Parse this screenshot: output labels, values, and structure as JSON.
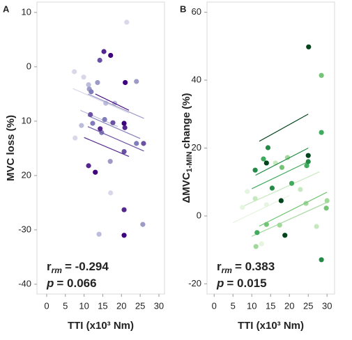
{
  "chart_data": [
    {
      "type": "scatter",
      "panel_label": "A",
      "ylabel": "MVC loss (%)",
      "xlabel": "TTI (x10³ Nm)",
      "r_label": "r",
      "r_sub": "rm",
      "r_text": "= -0.294",
      "p_label": "p",
      "p_text": "= 0.066",
      "xlim": [
        -2.6,
        31.5
      ],
      "ylim": [
        -41.8,
        11.9
      ],
      "xticks": [
        0,
        5,
        10,
        15,
        20,
        25,
        30
      ],
      "yticks": [
        10,
        0,
        {
          "value": -10,
          "label": "10"
        },
        {
          "value": -20,
          "label": "20"
        },
        -30,
        -40
      ],
      "series": [
        {
          "color": "#d9d8ea",
          "x": [
            7.4,
            9.9,
            7.6,
            17.1,
            21.4
          ],
          "values": [
            -0.9,
            -1.9,
            -13.1,
            -23.2,
            8.2
          ],
          "fit_x": [
            7,
            22
          ],
          "fit_y": [
            -4,
            -8.5
          ]
        },
        {
          "color": "#bcbddc",
          "x": [
            11.2,
            15.8,
            14,
            18.2,
            9.3
          ],
          "values": [
            -3.3,
            -6.7,
            -30.8,
            -6.7,
            -10.8
          ],
          "fit_x": [
            9,
            19
          ],
          "fit_y": [
            -8,
            -11
          ]
        },
        {
          "color": "#9e9ac8",
          "x": [
            11.4,
            13.6,
            17,
            25.7,
            24
          ],
          "values": [
            -4.1,
            -2.9,
            -17.4,
            -29,
            -2.7
          ],
          "fit_x": [
            11,
            26
          ],
          "fit_y": [
            -5,
            -9.5
          ]
        },
        {
          "color": "#807dba",
          "x": [
            11.9,
            12.3,
            14.7,
            24,
            15.5
          ],
          "values": [
            -4.6,
            -10.4,
            -12.1,
            -14.1,
            -9.7
          ],
          "fit_x": [
            11,
            25
          ],
          "fit_y": [
            -9,
            -13.2
          ]
        },
        {
          "color": "#6a51a3",
          "x": [
            14.2,
            17.7,
            11.7,
            25.9,
            20.7
          ],
          "values": [
            1.2,
            -10.3,
            -8.8,
            -14.1,
            -15.6
          ],
          "fit_x": [
            11,
            26
          ],
          "fit_y": [
            -11,
            -15.5
          ]
        },
        {
          "color": "#54278f",
          "x": [
            15.3,
            11.2,
            14.3,
            20.9,
            20.7
          ],
          "values": [
            2.8,
            -18.2,
            -11.4,
            -11.2,
            -26.3
          ],
          "fit_x": [
            10,
            22
          ],
          "fit_y": [
            -13,
            -16.5
          ]
        },
        {
          "color": "#3f007d",
          "x": [
            17.1,
            21,
            20.7,
            20.7,
            13
          ],
          "values": [
            2.1,
            -2.9,
            -10.4,
            -31,
            -19.4
          ],
          "fit_x": [
            13,
            22
          ],
          "fit_y": [
            -5,
            -8
          ]
        }
      ]
    },
    {
      "type": "scatter",
      "panel_label": "B",
      "ylabel": "ΔMVC",
      "ylabel_sub": "1-MIN",
      "ylabel_rest": "change (%)",
      "xlabel": "TTI (x10³ Nm)",
      "r_label": "r",
      "r_sub": "rm",
      "r_text": "= 0.383",
      "p_label": "p",
      "p_text": "= 0.015",
      "xlim": [
        -1.9,
        32
      ],
      "ylim": [
        -23,
        63
      ],
      "xticks": [
        0,
        5,
        10,
        15,
        20,
        25,
        30
      ],
      "yticks": [
        -20,
        0,
        20,
        40,
        60
      ],
      "series": [
        {
          "color": "#e5f5e0",
          "x": [
            7.5,
            8.8,
            12.6,
            13.9
          ],
          "values": [
            2.5,
            7.2,
            -8.2,
            3.3
          ],
          "fit_x": [
            5,
            20
          ],
          "fit_y": [
            -2,
            6
          ]
        },
        {
          "color": "#c7e9c0",
          "x": [
            10.9,
            16.3,
            22.9,
            27.2
          ],
          "values": [
            5.1,
            15.6,
            7.8,
            -3.1
          ],
          "fit_x": [
            8,
            28
          ],
          "fit_y": [
            3,
            13
          ]
        },
        {
          "color": "#a1d99b",
          "x": [
            11.1,
            17.4,
            19.5,
            30,
            24.4
          ],
          "values": [
            -9,
            -2.7,
            17.2,
            4.5,
            3.7
          ],
          "fit_x": [
            10,
            30
          ],
          "fit_y": [
            -6,
            4
          ]
        },
        {
          "color": "#74c476",
          "x": [
            13.9,
            18,
            28.5,
            29.8
          ],
          "values": [
            -2.5,
            14.3,
            41.4,
            2.3
          ],
          "fit_x": [
            12,
            30
          ],
          "fit_y": [
            -3,
            7
          ]
        },
        {
          "color": "#41ab5d",
          "x": [
            11.4,
            13.1,
            24.6,
            28.5,
            20.6
          ],
          "values": [
            -4.9,
            16.8,
            14.8,
            24.6,
            9.6
          ],
          "fit_x": [
            10,
            25
          ],
          "fit_y": [
            8,
            16
          ]
        },
        {
          "color": "#238b45",
          "x": [
            10.9,
            15.4,
            14.3,
            25,
            28.5
          ],
          "values": [
            13.5,
            8.2,
            20.1,
            16,
            -12.9
          ],
          "fit_x": [
            11,
            25
          ],
          "fit_y": [
            12,
            20
          ]
        },
        {
          "color": "#00441b",
          "x": [
            25.1,
            13.9,
            18.8,
            25,
            17.8
          ],
          "values": [
            49.8,
            15.6,
            -5.7,
            17.8,
            4.5
          ],
          "fit_x": [
            12,
            25
          ],
          "fit_y": [
            22,
            30
          ]
        }
      ]
    }
  ]
}
